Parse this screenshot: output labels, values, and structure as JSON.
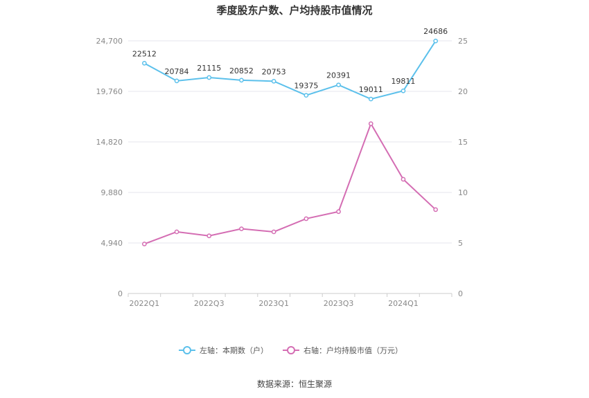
{
  "title": "季度股东户数、户均持股市值情况",
  "source_text": "数据来源：恒生聚源",
  "colors": {
    "left_series": "#5bc0eb",
    "right_series": "#d46db3",
    "grid": "#e6e6ee",
    "axis": "#cccccc"
  },
  "chart_data": {
    "type": "line",
    "x": [
      "2022Q1",
      "2022Q2",
      "2022Q3",
      "2022Q4",
      "2023Q1",
      "2023Q2",
      "2023Q3",
      "2023Q4",
      "2024Q1",
      "2024Q2"
    ],
    "x_tick_labels": [
      "2022Q1",
      "",
      "2022Q3",
      "",
      "2023Q1",
      "",
      "2023Q3",
      "",
      "2024Q1",
      ""
    ],
    "left_axis": {
      "ylim": [
        0,
        24700
      ],
      "ticks": [
        0,
        4940,
        9880,
        14820,
        19760,
        24700
      ],
      "tick_labels": [
        "0",
        "4,940",
        "9,880",
        "14,820",
        "19,760",
        "24,700"
      ]
    },
    "right_axis": {
      "ylim": [
        0,
        25
      ],
      "ticks": [
        0,
        5,
        10,
        15,
        20,
        25
      ],
      "tick_labels": [
        "0",
        "5",
        "10",
        "15",
        "20",
        "25"
      ]
    },
    "series": [
      {
        "name": "左轴：本期数（户）",
        "axis": "left",
        "values": [
          22512,
          20784,
          21115,
          20852,
          20753,
          19375,
          20391,
          19011,
          19811,
          24686
        ],
        "data_labels": [
          "22512",
          "20784",
          "21115",
          "20852",
          "20753",
          "19375",
          "20391",
          "19011",
          "19811",
          "24686"
        ]
      },
      {
        "name": "右轴：户均持股市值（万元）",
        "axis": "right",
        "values": [
          4.9,
          6.1,
          5.7,
          6.4,
          6.1,
          7.4,
          8.1,
          16.8,
          11.3,
          8.3
        ]
      }
    ],
    "grid": true,
    "legend_position": "bottom"
  }
}
